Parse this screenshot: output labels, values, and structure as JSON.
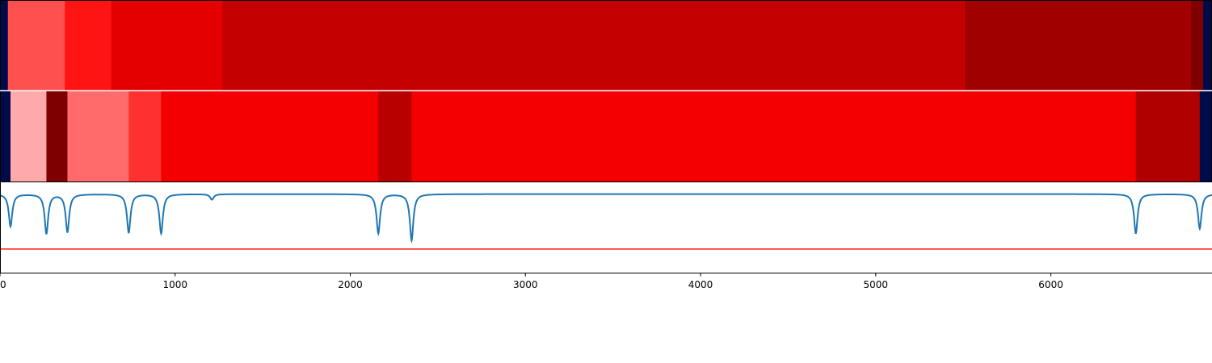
{
  "chart_data": {
    "type": "heatmap",
    "x_range": [
      0,
      6920
    ],
    "x_ticks": [
      "0",
      "1000",
      "2000",
      "3000",
      "4000",
      "5000",
      "6000"
    ],
    "x_tick_values": [
      0,
      1000,
      2000,
      3000,
      4000,
      5000,
      6000
    ],
    "background_color": "#000b4a",
    "heatmap_rows": [
      {
        "segments": [
          {
            "start": 0,
            "end": 45,
            "color": "#000b4a"
          },
          {
            "start": 45,
            "end": 370,
            "color": "#ff5050"
          },
          {
            "start": 370,
            "end": 635,
            "color": "#ff1414"
          },
          {
            "start": 635,
            "end": 1270,
            "color": "#e40000"
          },
          {
            "start": 1270,
            "end": 5510,
            "color": "#c40000"
          },
          {
            "start": 5510,
            "end": 6800,
            "color": "#a00000"
          },
          {
            "start": 6800,
            "end": 6870,
            "color": "#7e0000"
          },
          {
            "start": 6870,
            "end": 6920,
            "color": "#000b4a"
          }
        ]
      },
      {
        "segments": [
          {
            "start": 0,
            "end": 60,
            "color": "#000b4a"
          },
          {
            "start": 60,
            "end": 265,
            "color": "#ffaaaa"
          },
          {
            "start": 265,
            "end": 385,
            "color": "#7e0000"
          },
          {
            "start": 385,
            "end": 735,
            "color": "#ff6a6a"
          },
          {
            "start": 735,
            "end": 920,
            "color": "#ff3030"
          },
          {
            "start": 920,
            "end": 2160,
            "color": "#f40000"
          },
          {
            "start": 2160,
            "end": 2350,
            "color": "#b80000"
          },
          {
            "start": 2350,
            "end": 6485,
            "color": "#f40000"
          },
          {
            "start": 6485,
            "end": 6850,
            "color": "#b00000"
          },
          {
            "start": 6850,
            "end": 6920,
            "color": "#000b4a"
          }
        ]
      }
    ],
    "signal": {
      "color": "#1f77b4",
      "baseline": 0,
      "y_range": [
        -1,
        0.15
      ],
      "dips": [
        {
          "x": 60,
          "depth": 0.41
        },
        {
          "x": 265,
          "depth": 0.5
        },
        {
          "x": 385,
          "depth": 0.48
        },
        {
          "x": 735,
          "depth": 0.49
        },
        {
          "x": 920,
          "depth": 0.5
        },
        {
          "x": 1210,
          "depth": 0.07
        },
        {
          "x": 2160,
          "depth": 0.5
        },
        {
          "x": 2350,
          "depth": 0.59
        },
        {
          "x": 6485,
          "depth": 0.5
        },
        {
          "x": 6850,
          "depth": 0.44
        }
      ]
    },
    "threshold": {
      "value": -0.7,
      "color": "#ff0000"
    }
  }
}
